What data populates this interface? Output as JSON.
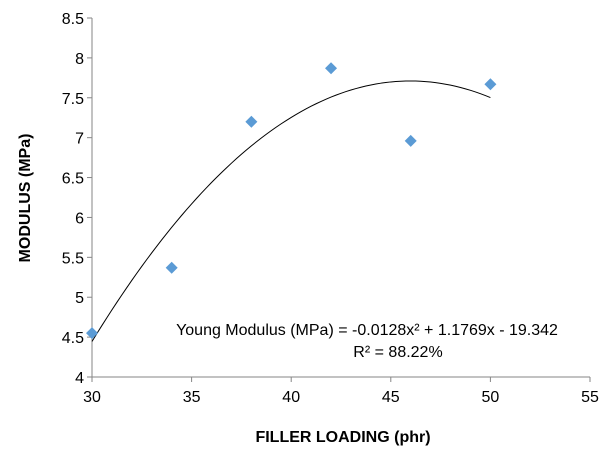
{
  "chart_data": {
    "type": "scatter",
    "title": "",
    "xlabel": "FILLER LOADING (phr)",
    "ylabel": "MODULUS (MPa)",
    "xlim": [
      30,
      55
    ],
    "ylim": [
      4,
      8.5
    ],
    "x_ticks": [
      30,
      35,
      40,
      45,
      50,
      55
    ],
    "y_ticks": [
      4,
      4.5,
      5,
      5.5,
      6,
      6.5,
      7,
      7.5,
      8,
      8.5
    ],
    "x_tick_labels": [
      "30",
      "35",
      "40",
      "45",
      "50",
      "55"
    ],
    "y_tick_labels": [
      "4",
      "4.5",
      "5",
      "5.5",
      "6",
      "6.5",
      "7",
      "7.5",
      "8",
      "8.5"
    ],
    "grid": false,
    "legend": "none",
    "series": [
      {
        "points": [
          {
            "x": 30,
            "y": 4.55
          },
          {
            "x": 34,
            "y": 5.37
          },
          {
            "x": 38,
            "y": 7.2
          },
          {
            "x": 42,
            "y": 7.87
          },
          {
            "x": 46,
            "y": 6.96
          },
          {
            "x": 50,
            "y": 7.67
          }
        ],
        "color": "#5b9bd5",
        "marker": "diamond"
      }
    ],
    "trendline": {
      "type": "polynomial",
      "coefficients": {
        "a": -0.0128,
        "b": 1.1769,
        "c": -19.342
      },
      "x_range": [
        30,
        50
      ],
      "color": "#000000"
    },
    "annotations": [
      "Young Modulus (MPa) = -0.0128x² + 1.1769x - 19.342",
      "R² = 88.22%"
    ]
  }
}
